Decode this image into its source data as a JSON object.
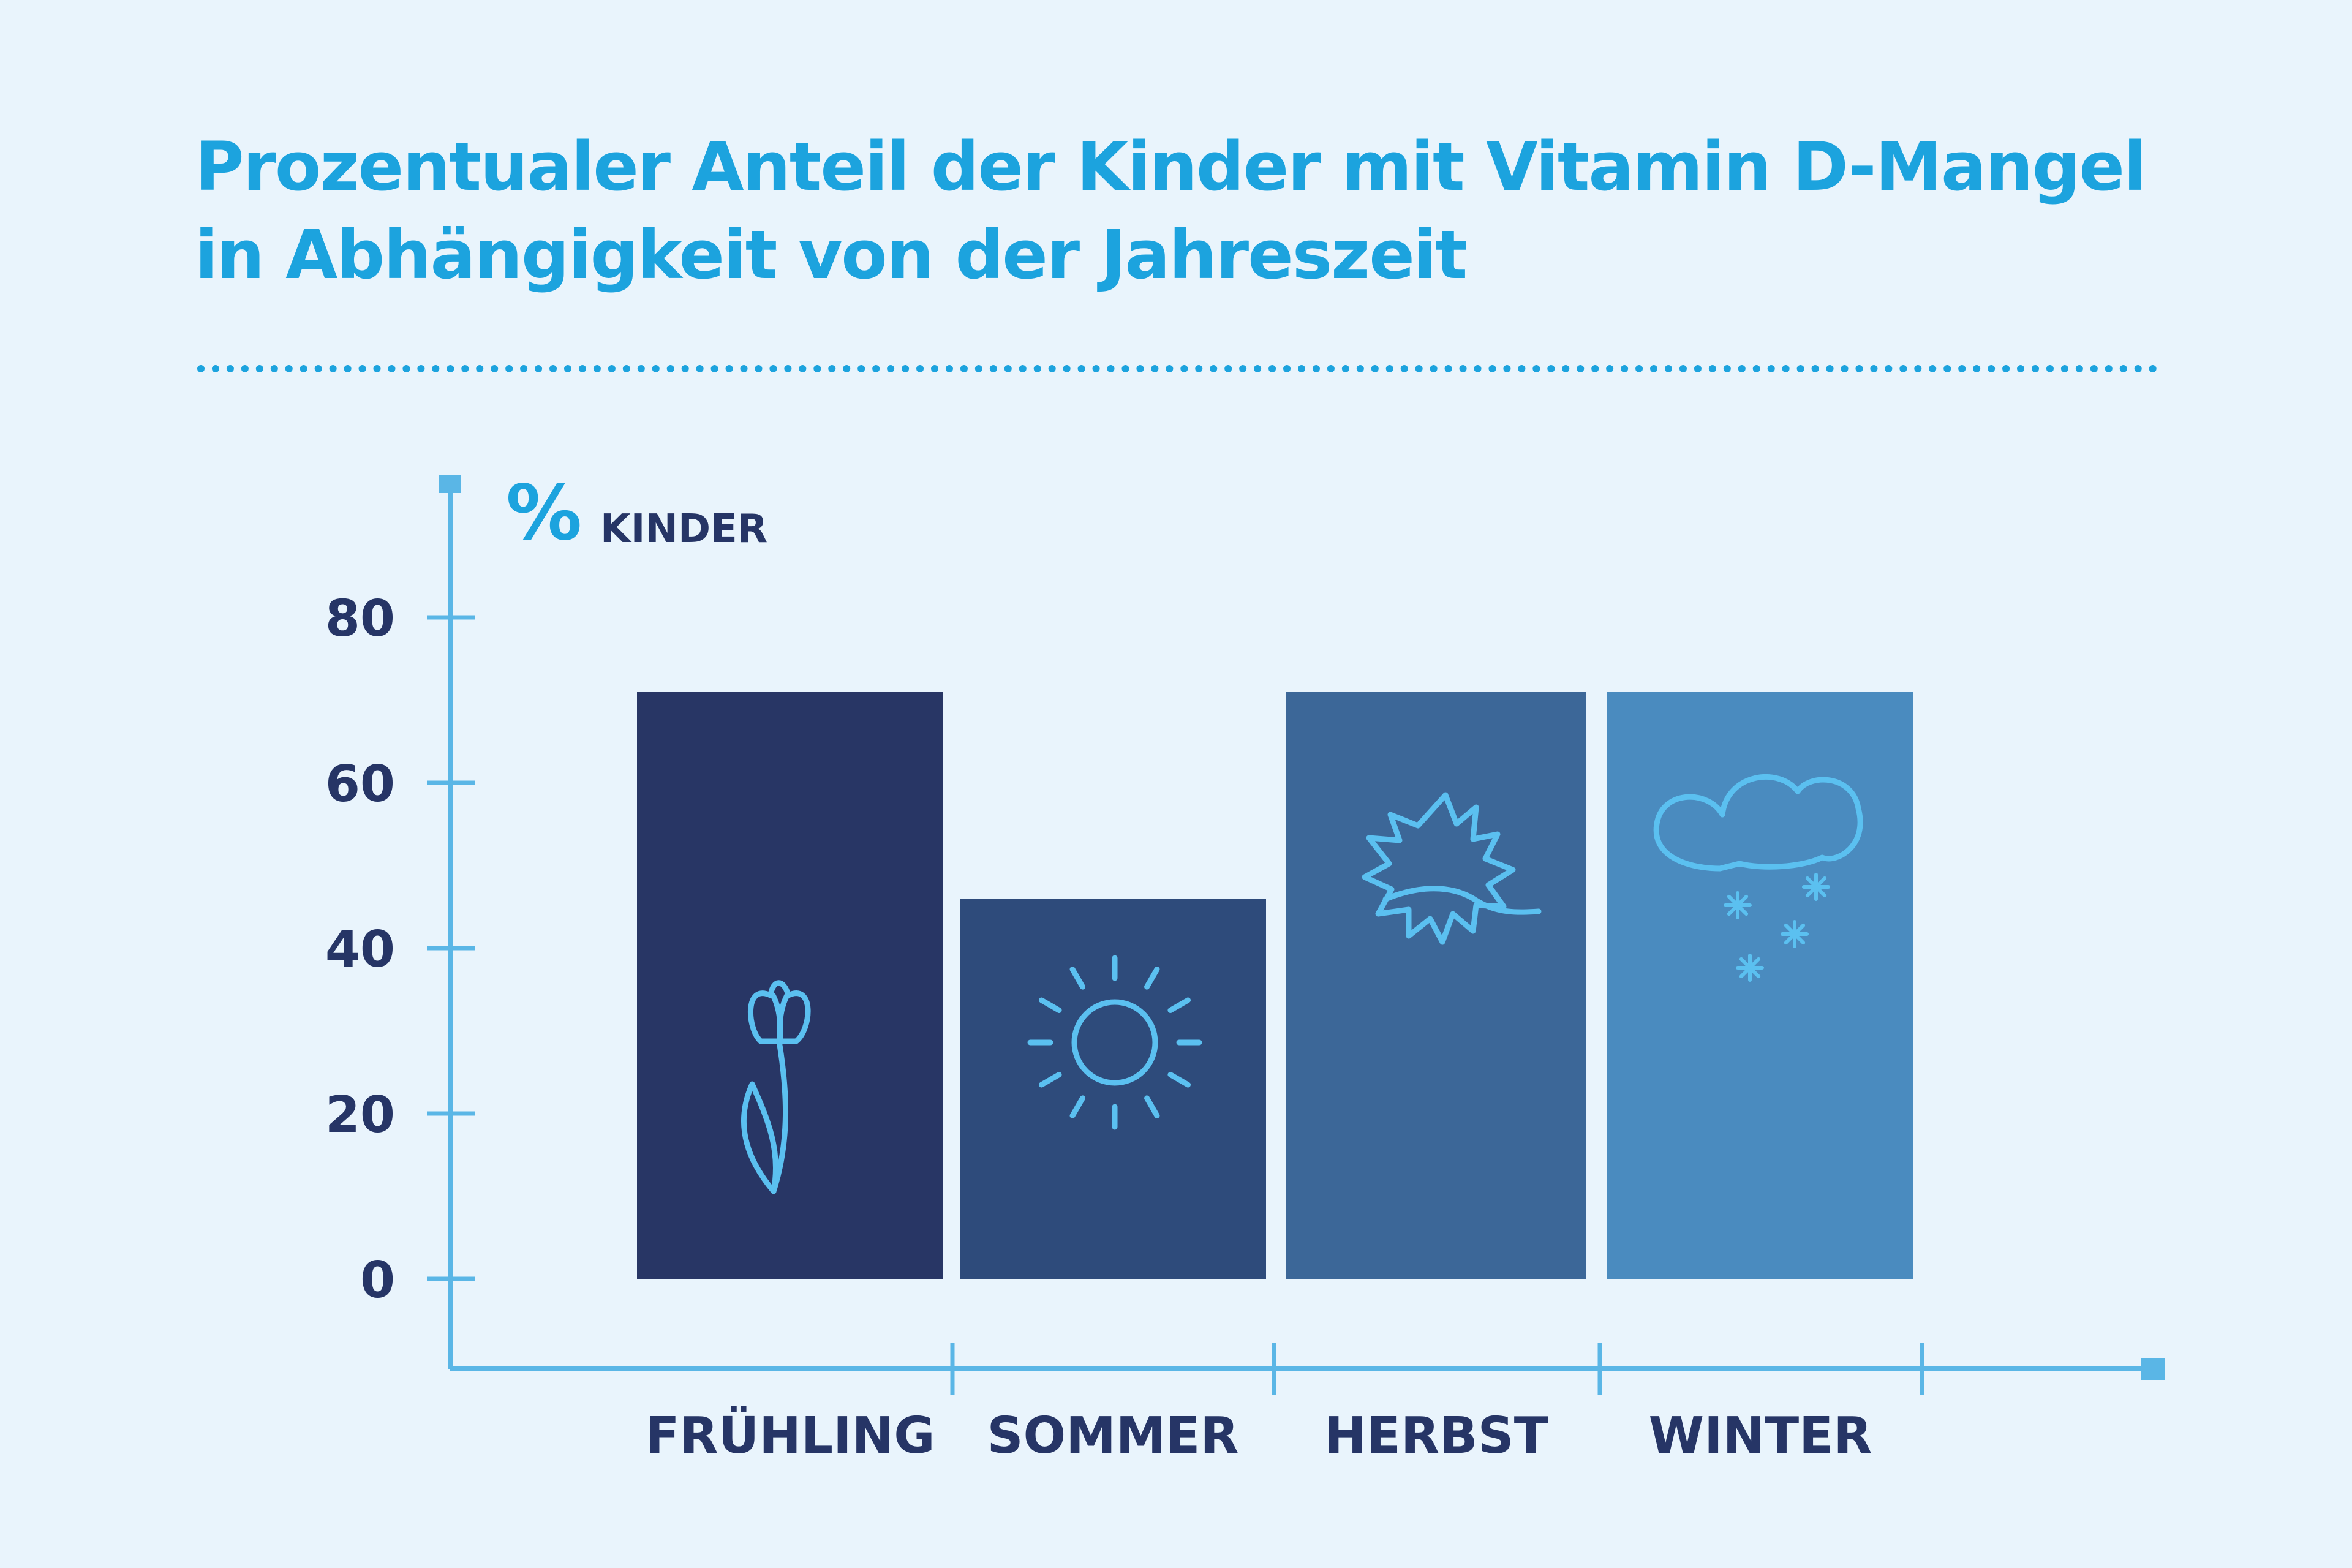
{
  "title": {
    "line1": "Prozentualer Anteil der Kinder mit Vitamin D-Mangel",
    "line2": "in Abhängigkeit von der Jahreszeit"
  },
  "colors": {
    "background": "#e9f4fc",
    "title": "#1ca3de",
    "axis": "#5ab6e6",
    "label": "#263566",
    "icon": "#5bc0f0"
  },
  "chart_data": {
    "type": "bar",
    "categories": [
      "FRÜHLING",
      "SOMMER",
      "HERBST",
      "WINTER"
    ],
    "values": [
      71,
      46,
      71,
      71
    ],
    "bar_colors": [
      "#283665",
      "#2e4b7b",
      "#3c6798",
      "#4a8bbf"
    ],
    "icons": [
      "tulip-icon",
      "sun-icon",
      "leaf-icon",
      "snow-cloud-icon"
    ],
    "ylabel_symbol": "%",
    "ylabel": "KINDER",
    "yticks": [
      0,
      20,
      40,
      60,
      80
    ],
    "ylim": [
      0,
      80
    ],
    "grid": false,
    "legend": "none"
  }
}
